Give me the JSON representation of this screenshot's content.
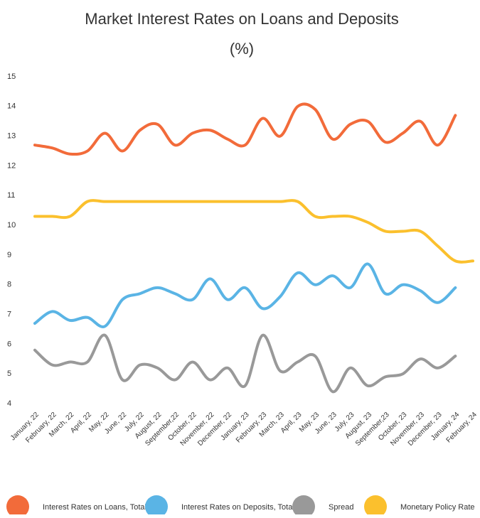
{
  "chart_data": {
    "type": "line",
    "title": "Market Interest Rates on Loans and Deposits",
    "subtitle": "(%)",
    "categories": [
      "January, 22",
      "February, 22",
      "March, 22",
      "April, 22",
      "May, 22",
      "June, 22",
      "July, 22",
      "August, 22",
      "September,22",
      "October, 22",
      "November, 22",
      "December, 22",
      "January, 23",
      "February, 23",
      "March, 23",
      "April, 23",
      "May, 23",
      "June, 23",
      "July, 23",
      "August, 23",
      "September,23",
      "October, 23",
      "November, 23",
      "December, 23",
      "January, 24",
      "February, 24"
    ],
    "series": [
      {
        "name": "Interest Rates on Loans, Total",
        "color": "#f26b3a",
        "values": [
          12.7,
          12.6,
          12.4,
          12.5,
          13.1,
          12.5,
          13.2,
          13.4,
          12.7,
          13.1,
          13.2,
          12.9,
          12.7,
          13.6,
          13.0,
          14.0,
          13.9,
          12.9,
          13.4,
          13.5,
          12.8,
          13.1,
          13.5,
          12.7,
          13.7,
          null
        ]
      },
      {
        "name": "Interest Rates on Deposits, Total",
        "color": "#5ab4e5",
        "values": [
          6.7,
          7.1,
          6.8,
          6.9,
          6.6,
          7.5,
          7.7,
          7.9,
          7.7,
          7.5,
          8.2,
          7.5,
          7.9,
          7.2,
          7.6,
          8.4,
          8.0,
          8.3,
          7.9,
          8.7,
          7.7,
          8.0,
          7.8,
          7.4,
          7.9,
          null
        ]
      },
      {
        "name": "Spread",
        "color": "#999999",
        "values": [
          5.8,
          5.3,
          5.4,
          5.4,
          6.3,
          4.8,
          5.3,
          5.2,
          4.8,
          5.4,
          4.8,
          5.2,
          4.6,
          6.3,
          5.1,
          5.4,
          5.6,
          4.4,
          5.2,
          4.6,
          4.9,
          5.0,
          5.5,
          5.2,
          5.6,
          null
        ]
      },
      {
        "name": "Monetary Policy Rate",
        "color": "#fbc02d",
        "values": [
          10.3,
          10.3,
          10.3,
          10.8,
          10.8,
          10.8,
          10.8,
          10.8,
          10.8,
          10.8,
          10.8,
          10.8,
          10.8,
          10.8,
          10.8,
          10.8,
          10.3,
          10.3,
          10.3,
          10.1,
          9.8,
          9.8,
          9.8,
          9.3,
          8.8,
          8.8
        ]
      }
    ],
    "ylim": [
      4,
      15
    ],
    "yticks": [
      4,
      5,
      6,
      7,
      8,
      9,
      10,
      11,
      12,
      13,
      14,
      15
    ],
    "legend": "bottom"
  }
}
